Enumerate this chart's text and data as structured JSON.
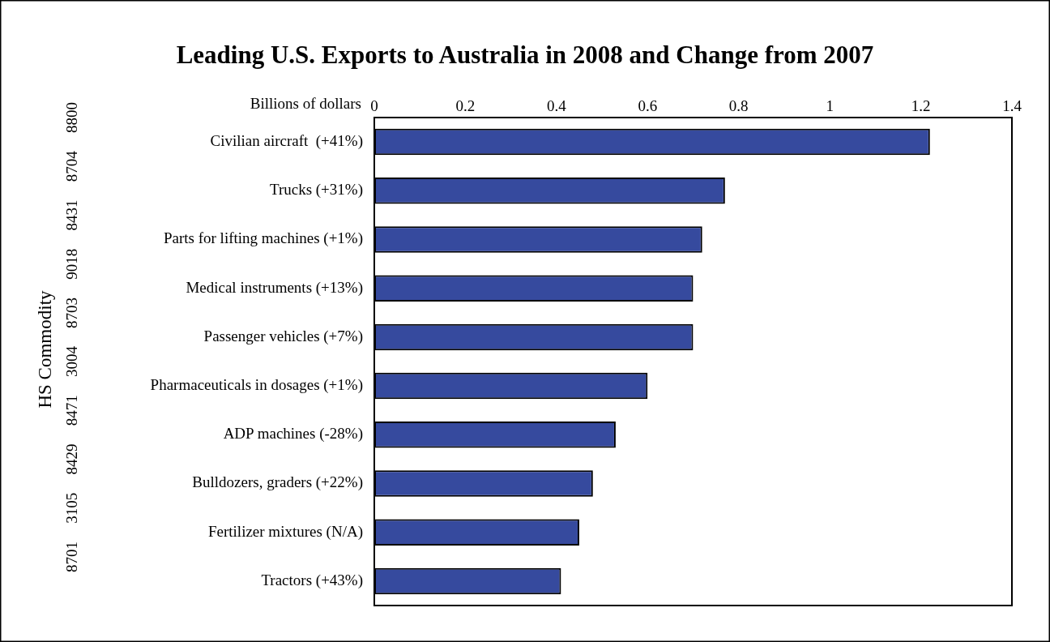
{
  "chart_data": {
    "type": "bar",
    "orientation": "horizontal",
    "title": "Leading U.S. Exports to Australia in 2008 and Change from 2007",
    "xlabel": "Billions of dollars",
    "categories": [
      "Civilian aircraft  (+41%)",
      "Trucks (+31%)",
      "Parts for lifting machines (+1%)",
      "Medical instruments (+13%)",
      "Passenger vehicles (+7%)",
      "Pharmaceuticals in dosages (+1%)",
      "ADP machines (-28%)",
      "Bulldozers, graders (+22%)",
      "Fertilizer mixtures (N/A)",
      "Tractors (+43%)"
    ],
    "values": [
      1.22,
      0.77,
      0.72,
      0.7,
      0.7,
      0.6,
      0.53,
      0.48,
      0.45,
      0.41
    ],
    "color": "#364a9e",
    "xlim": [
      0,
      1.4
    ],
    "xticks": [
      0,
      0.2,
      0.4,
      0.6,
      0.8,
      1,
      1.2,
      1.4
    ],
    "annotations": [
      "8800",
      "8704",
      "8431",
      "9018",
      "8703",
      "3004",
      "8471",
      "8429",
      "3105",
      "8701",
      "HS Commodity"
    ],
    "grid": false,
    "legend": false
  }
}
